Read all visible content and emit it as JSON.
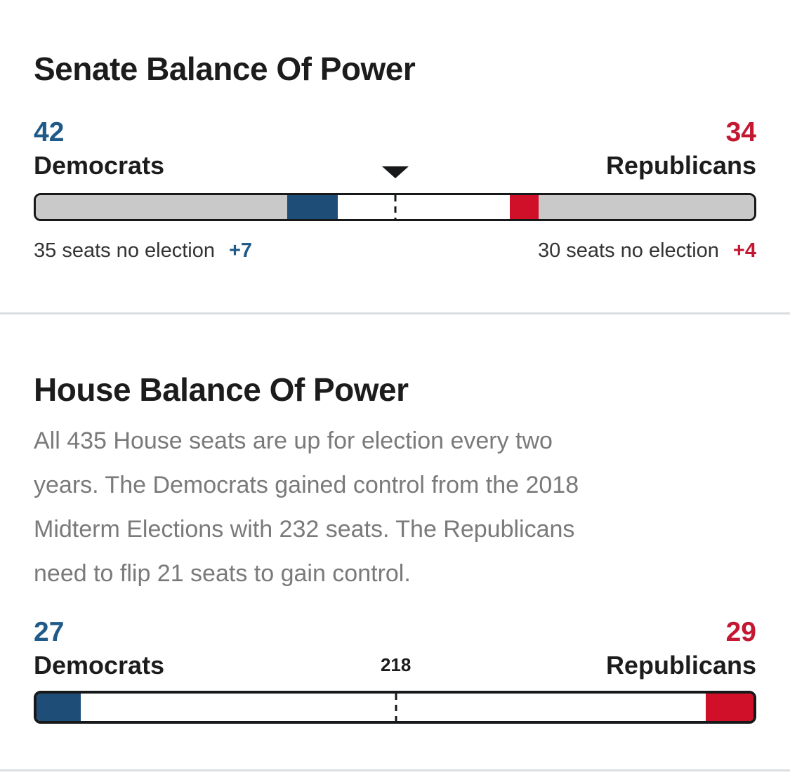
{
  "colors": {
    "dem_blue": "#1e4d78",
    "dem_blue_text": "#205a88",
    "rep_red": "#d00f28",
    "rep_red_text": "#c41732",
    "no_election_gray": "#c9c9c9",
    "bar_outline": "#17181a",
    "heading_text": "#1c1c1c",
    "body_text_gray": "#7a7a7a",
    "note_text": "#333333",
    "divider": "#d9dfe2"
  },
  "chart_data": [
    {
      "type": "bar",
      "title": "Senate Balance Of Power",
      "total_seats": 100,
      "left": {
        "count": 42,
        "party": "Democrats",
        "note": "35 seats no election",
        "net_gain": "+7"
      },
      "right": {
        "count": 34,
        "party": "Republicans",
        "note": "30 seats no election",
        "net_gain": "+4"
      },
      "majority_marker": {
        "at_seats": 50,
        "style": "down-arrow-and-dashed-line",
        "label": ""
      },
      "legend_position": "none",
      "segments": [
        {
          "name": "dem-seats-no-election",
          "seats": 35,
          "color": "#c9c9c9"
        },
        {
          "name": "dem-seats-won",
          "seats": 7,
          "color": "#1e4d78"
        },
        {
          "name": "undecided-seats",
          "seats": 24,
          "color": "#ffffff"
        },
        {
          "name": "rep-seats-won",
          "seats": 4,
          "color": "#d00f28"
        },
        {
          "name": "rep-seats-no-election",
          "seats": 30,
          "color": "#c9c9c9"
        }
      ]
    },
    {
      "type": "bar",
      "title": "House Balance Of Power",
      "subtitle_lines": [
        "All 435 House seats are up for election every two",
        "years. The Democrats gained control from the 2018",
        "Midterm Elections with 232 seats. The Republicans",
        "need to flip 21 seats to gain control."
      ],
      "total_seats": 435,
      "left": {
        "count": 27,
        "party": "Democrats"
      },
      "right": {
        "count": 29,
        "party": "Republicans"
      },
      "majority_marker": {
        "at_seats": 218,
        "style": "dashed-line",
        "label": "218"
      },
      "legend_position": "none",
      "segments": [
        {
          "name": "dem-seats-won",
          "seats": 27,
          "color": "#1e4d78"
        },
        {
          "name": "undecided-seats",
          "seats": 379,
          "color": "#ffffff"
        },
        {
          "name": "rep-seats-won",
          "seats": 29,
          "color": "#d00f28"
        }
      ]
    }
  ]
}
